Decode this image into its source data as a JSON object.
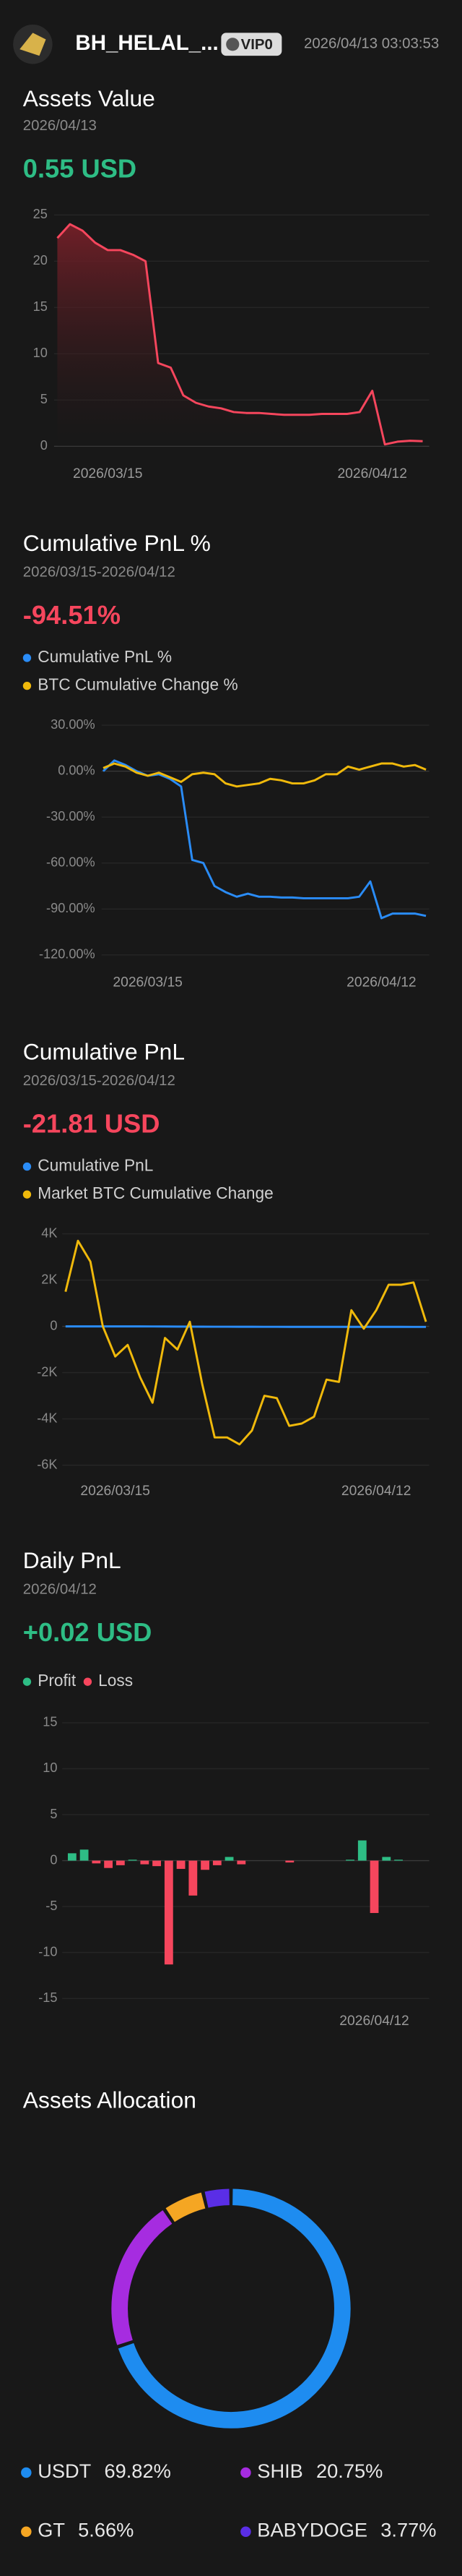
{
  "header": {
    "username": "BH_HELAL_...",
    "badge": "VIP0",
    "timestamp": "2026/04/13 03:03:53"
  },
  "chart_data": [
    {
      "type": "line",
      "title": "Assets Value",
      "subtitle": "2026/04/13",
      "summary": "0.55 USD",
      "summary_color": "#2ebd85",
      "categories": [
        null,
        null,
        null,
        null,
        "2026/03/15",
        null,
        null,
        null,
        null,
        null,
        null,
        null,
        null,
        null,
        null,
        null,
        null,
        null,
        null,
        null,
        null,
        null,
        null,
        null,
        null,
        "2026/04/12",
        null,
        null,
        null,
        null
      ],
      "values": [
        22.5,
        24,
        23.3,
        22,
        21.2,
        21.2,
        20.7,
        20,
        9,
        8.5,
        5.5,
        4.7,
        4.3,
        4.1,
        3.7,
        3.6,
        3.6,
        3.5,
        3.4,
        3.4,
        3.4,
        3.5,
        3.5,
        3.5,
        3.7,
        6,
        0.2,
        0.5,
        0.6,
        0.55
      ],
      "color": "#f6465d",
      "area": true,
      "ylim": [
        0,
        25
      ],
      "yticks": [
        0,
        5,
        10,
        15,
        20,
        25
      ],
      "grid": true
    },
    {
      "type": "line",
      "title": "Cumulative PnL %",
      "subtitle": "2026/03/15-2026/04/12",
      "summary": "-94.51%",
      "summary_color": "#f6465d",
      "categories": [
        null,
        null,
        null,
        null,
        "2026/03/15",
        null,
        null,
        null,
        null,
        null,
        null,
        null,
        null,
        null,
        null,
        null,
        null,
        null,
        null,
        null,
        null,
        null,
        null,
        null,
        null,
        "2026/04/12",
        null,
        null,
        null,
        null
      ],
      "series": [
        {
          "name": "Cumulative PnL %",
          "color": "#2a8cf7",
          "values": [
            0,
            7,
            4,
            0,
            -3,
            -2,
            -5,
            -10,
            -58,
            -60,
            -75,
            -79,
            -82,
            -80,
            -82,
            -82,
            -82.5,
            -82.5,
            -83,
            -83,
            -83,
            -83,
            -83,
            -82,
            -72,
            -96,
            -93,
            -93,
            -93,
            -94.5
          ]
        },
        {
          "name": "BTC Cumulative Change %",
          "color": "#f0b90b",
          "values": [
            2,
            5,
            3,
            -1,
            -3,
            -1,
            -4,
            -7,
            -2,
            -1,
            -2,
            -8,
            -10,
            -9,
            -8,
            -5,
            -6,
            -8,
            -8,
            -6,
            -2,
            -2,
            3,
            1,
            3,
            5,
            5,
            3,
            4,
            1
          ]
        }
      ],
      "ylim": [
        -120,
        30
      ],
      "yticks": [
        {
          "value": 30,
          "label": "30.00%"
        },
        {
          "value": 0,
          "label": "0.00%"
        },
        {
          "value": -30,
          "label": "-30.00%"
        },
        {
          "value": -60,
          "label": "-60.00%"
        },
        {
          "value": -90,
          "label": "-90.00%"
        },
        {
          "value": -120,
          "label": "-120.00%"
        }
      ],
      "grid": true
    },
    {
      "type": "line",
      "title": "Cumulative PnL",
      "subtitle": "2026/03/15-2026/04/12",
      "summary": "-21.81 USD",
      "summary_color": "#f6465d",
      "categories": [
        null,
        null,
        null,
        null,
        "2026/03/15",
        null,
        null,
        null,
        null,
        null,
        null,
        null,
        null,
        null,
        null,
        null,
        null,
        null,
        null,
        null,
        null,
        null,
        null,
        null,
        null,
        "2026/04/12",
        null,
        null,
        null,
        null
      ],
      "series": [
        {
          "name": "Cumulative PnL",
          "color": "#2a8cf7",
          "values": [
            0,
            0,
            0,
            0,
            0,
            0,
            0,
            -2,
            -5,
            -8,
            -10,
            -12,
            -14,
            -15,
            -16,
            -17,
            -18,
            -18,
            -19,
            -19,
            -20,
            -20,
            -20,
            -20,
            -21,
            -21,
            -21.5,
            -21.5,
            -21.8,
            -21.81
          ]
        },
        {
          "name": "Market BTC Cumulative Change",
          "color": "#f0b90b",
          "values": [
            1500,
            3700,
            2800,
            0,
            -1300,
            -800,
            -2200,
            -3300,
            -500,
            -1000,
            200,
            -2500,
            -4800,
            -4800,
            -5100,
            -4500,
            -3000,
            -3100,
            -4300,
            -4200,
            -3900,
            -2300,
            -2400,
            700,
            -100,
            700,
            1800,
            1800,
            1900,
            200
          ]
        }
      ],
      "ylim": [
        -6000,
        4000
      ],
      "yticks": [
        {
          "value": 4000,
          "label": "4K"
        },
        {
          "value": 2000,
          "label": "2K"
        },
        0,
        {
          "value": -2000,
          "label": "-2K"
        },
        {
          "value": -4000,
          "label": "-4K"
        },
        {
          "value": -6000,
          "label": "-6K"
        }
      ],
      "grid": true
    },
    {
      "type": "bar",
      "title": "Daily PnL",
      "subtitle": "2026/04/12",
      "summary": "+0.02 USD",
      "summary_color": "#2ebd85",
      "categories": [
        null,
        null,
        null,
        null,
        null,
        null,
        null,
        null,
        null,
        null,
        null,
        null,
        null,
        null,
        null,
        null,
        null,
        null,
        null,
        null,
        null,
        null,
        null,
        null,
        null,
        "2026/04/12",
        null,
        null,
        null,
        null
      ],
      "series": [
        {
          "name": "Profit",
          "color": "#2ebd85",
          "values": [
            0.8,
            1.2,
            null,
            null,
            null,
            0.1,
            null,
            null,
            null,
            null,
            null,
            null,
            null,
            0.4,
            null,
            null,
            null,
            null,
            null,
            null,
            null,
            null,
            null,
            0.1,
            2.2,
            null,
            0.4,
            0.1,
            null,
            null
          ]
        },
        {
          "name": "Loss",
          "color": "#f6465d",
          "values": [
            null,
            null,
            -0.3,
            -0.8,
            -0.5,
            null,
            -0.4,
            -0.6,
            -11.3,
            -0.9,
            -3.8,
            -1,
            -0.5,
            null,
            -0.4,
            null,
            null,
            null,
            -0.2,
            null,
            null,
            null,
            null,
            null,
            null,
            -5.7,
            null,
            null,
            null,
            null
          ]
        }
      ],
      "ylim": [
        -15,
        15
      ],
      "yticks": [
        15,
        10,
        5,
        0,
        -5,
        -10,
        -15
      ],
      "grid": true
    },
    {
      "type": "pie",
      "title": "Assets Allocation",
      "categories": [
        "USDT",
        "SHIB",
        "GT",
        "BABYDOGE"
      ],
      "values": [
        69.82,
        20.75,
        5.66,
        3.77
      ],
      "value_labels": [
        "69.82%",
        "20.75%",
        "5.66%",
        "3.77%"
      ],
      "colors": [
        "#1e8cf0",
        "#a62ce0",
        "#f5a623",
        "#5a2ee6"
      ]
    }
  ]
}
